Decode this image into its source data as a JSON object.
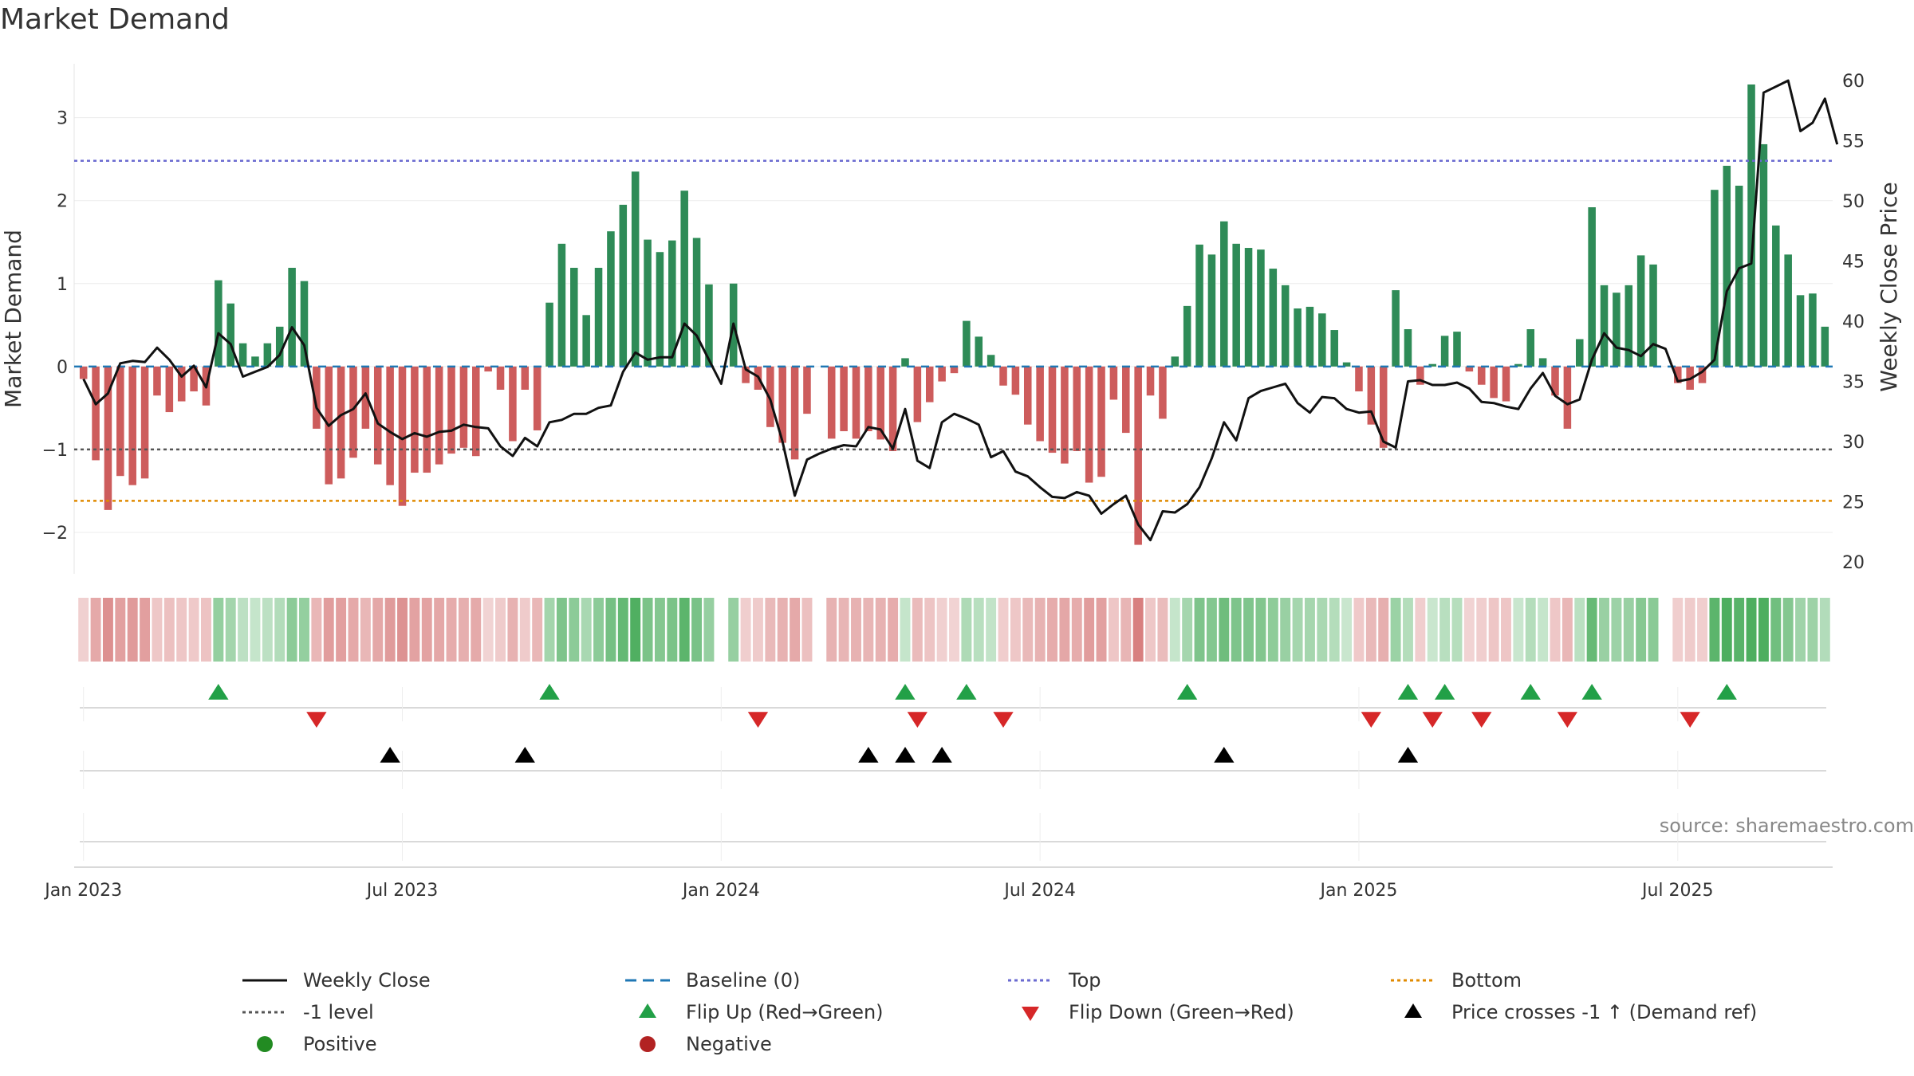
{
  "title": "Market Demand",
  "source": "source: sharemaestro.com",
  "colors": {
    "positive": "#2e8b57",
    "negative": "#cd5c5c",
    "line": "#111111",
    "baseline": "#1f77b4",
    "top": "#6a6ad0",
    "bottom": "#e08a00",
    "level": "#555555",
    "flip_up": "#22a047",
    "flip_down": "#d62728",
    "cross": "#000000"
  },
  "chart_data": {
    "type": "bar",
    "xlabel": "",
    "ylabel": "Market Demand",
    "y2label": "Weekly Close Price",
    "ylim": [
      -2.5,
      3.65
    ],
    "y2lim": [
      19.0,
      61.4
    ],
    "yticks": [
      -2,
      -1,
      0,
      1,
      2,
      3
    ],
    "y2ticks": [
      20,
      25,
      30,
      35,
      40,
      45,
      50,
      55,
      60
    ],
    "x_start": "2023-01-02",
    "x_tick_labels": [
      "Jan 2023",
      "Jul 2023",
      "Jan 2024",
      "Jul 2024",
      "Jan 2025",
      "Jul 2025"
    ],
    "x_tick_weeks": [
      0,
      26,
      52,
      78,
      104,
      130
    ],
    "top_level": 2.48,
    "bottom_level": -1.62,
    "minus1_level": -1.0,
    "demand": [
      -0.15,
      -1.13,
      -1.73,
      -1.32,
      -1.43,
      -1.35,
      -0.35,
      -0.55,
      -0.42,
      -0.3,
      -0.47,
      1.04,
      0.76,
      0.28,
      0.12,
      0.28,
      0.48,
      1.19,
      1.03,
      -0.75,
      -1.42,
      -1.35,
      -1.1,
      -0.75,
      -1.18,
      -1.43,
      -1.68,
      -1.28,
      -1.28,
      -1.18,
      -1.05,
      -0.98,
      -1.08,
      -0.06,
      -0.28,
      -0.9,
      -0.28,
      -0.77,
      0.77,
      1.48,
      1.19,
      0.62,
      1.19,
      1.63,
      1.95,
      2.35,
      1.53,
      1.38,
      1.52,
      2.12,
      1.55,
      0.99,
      0.0,
      1.0,
      -0.2,
      -0.28,
      -0.73,
      -0.92,
      -1.12,
      -0.57,
      0.0,
      -0.87,
      -0.78,
      -0.87,
      -0.78,
      -0.88,
      -1.02,
      0.1,
      -0.67,
      -0.43,
      -0.18,
      -0.08,
      0.55,
      0.36,
      0.14,
      -0.23,
      -0.34,
      -0.7,
      -0.9,
      -1.04,
      -1.17,
      -1.02,
      -1.4,
      -1.33,
      -0.4,
      -0.8,
      -2.15,
      -0.35,
      -0.63,
      0.12,
      0.73,
      1.47,
      1.35,
      1.75,
      1.48,
      1.43,
      1.41,
      1.18,
      0.98,
      0.7,
      0.72,
      0.64,
      0.44,
      0.05,
      -0.3,
      -0.7,
      -0.98,
      0.92,
      0.45,
      -0.22,
      0.03,
      0.37,
      0.42,
      -0.06,
      -0.22,
      -0.38,
      -0.42,
      0.03,
      0.45,
      0.1,
      -0.35,
      -0.75,
      0.33,
      1.92,
      0.98,
      0.89,
      0.98,
      1.34,
      1.23,
      0.0,
      -0.2,
      -0.28,
      -0.2,
      2.13,
      2.42,
      2.18,
      3.4,
      2.68,
      1.7,
      1.35,
      0.86,
      0.88,
      0.48
    ],
    "close": [
      35.2,
      33.1,
      34.0,
      36.5,
      36.7,
      36.6,
      37.8,
      36.8,
      35.4,
      36.3,
      34.5,
      39.0,
      38.1,
      35.4,
      35.8,
      36.2,
      37.2,
      39.5,
      38.0,
      32.8,
      31.3,
      32.2,
      32.7,
      34.0,
      31.5,
      30.8,
      30.2,
      30.7,
      30.4,
      30.8,
      30.9,
      31.4,
      31.2,
      31.1,
      29.6,
      28.8,
      30.3,
      29.6,
      31.6,
      31.8,
      32.3,
      32.3,
      32.8,
      33.0,
      35.8,
      37.4,
      36.8,
      37.0,
      37.0,
      39.8,
      38.8,
      36.8,
      34.8,
      39.8,
      36.0,
      35.4,
      33.5,
      30.0,
      25.5,
      28.5,
      29.0,
      29.4,
      29.7,
      29.6,
      31.2,
      31.0,
      29.4,
      32.7,
      28.4,
      27.8,
      31.6,
      32.3,
      31.9,
      31.4,
      28.7,
      29.2,
      27.5,
      27.1,
      26.2,
      25.4,
      25.3,
      25.8,
      25.5,
      24.0,
      24.8,
      25.5,
      23.1,
      21.8,
      24.2,
      24.1,
      24.8,
      26.2,
      28.6,
      31.6,
      30.1,
      33.6,
      34.2,
      34.5,
      34.8,
      33.2,
      32.4,
      33.7,
      33.6,
      32.7,
      32.4,
      32.5,
      30.0,
      29.5,
      35.0,
      35.1,
      34.7,
      34.7,
      34.9,
      34.4,
      33.3,
      33.2,
      32.9,
      32.7,
      34.4,
      35.7,
      33.8,
      33.1,
      33.5,
      36.8,
      39.0,
      37.8,
      37.6,
      37.1,
      38.1,
      37.7,
      35.0,
      35.2,
      35.8,
      36.8,
      42.5,
      44.4,
      44.8,
      59.0,
      59.5,
      60.0,
      55.8,
      56.5,
      58.5,
      54.7
    ],
    "flip_up_weeks": [
      11,
      38,
      67,
      72,
      90,
      108,
      111,
      118,
      123,
      134
    ],
    "flip_down_weeks": [
      19,
      55,
      68,
      75,
      105,
      110,
      114,
      121,
      131
    ],
    "price_cross_weeks": [
      25,
      36,
      64,
      67,
      70,
      93,
      108
    ]
  },
  "legend": [
    {
      "label": "Weekly Close",
      "symbol": "line-solid"
    },
    {
      "label": "Baseline (0)",
      "symbol": "line-dash-blue"
    },
    {
      "label": "Top",
      "symbol": "line-dot-purple"
    },
    {
      "label": "Bottom",
      "symbol": "line-dot-orange"
    },
    {
      "label": "-1 level",
      "symbol": "line-dot-gray"
    },
    {
      "label": "Flip Up (Red→Green)",
      "symbol": "triangle-up-green"
    },
    {
      "label": "Flip Down (Green→Red)",
      "symbol": "triangle-down-red"
    },
    {
      "label": "Price crosses -1 ↑ (Demand ref)",
      "symbol": "triangle-up-black"
    },
    {
      "label": "Positive",
      "symbol": "dot-green"
    },
    {
      "label": "Negative",
      "symbol": "dot-red"
    }
  ]
}
